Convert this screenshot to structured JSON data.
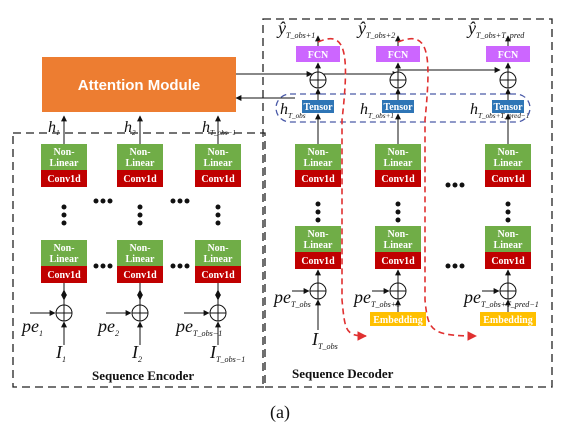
{
  "attention": {
    "label": "Attention Module"
  },
  "blocks": {
    "nonlinear_line1": "Non-",
    "nonlinear_line2": "Linear",
    "conv": "Conv1d",
    "tensor": "Tensor",
    "fcn": "FCN",
    "embedding": "Embedding"
  },
  "encoder": {
    "title": "Sequence Encoder",
    "hidden": [
      {
        "base": "h",
        "sub": "1"
      },
      {
        "base": "h",
        "sub": "2"
      },
      {
        "base": "h",
        "sub": "T_obs−1"
      }
    ],
    "pe": [
      {
        "base": "pe",
        "sub": "1"
      },
      {
        "base": "pe",
        "sub": "2"
      },
      {
        "base": "pe",
        "sub": "T_obs−1"
      }
    ],
    "inputs": [
      {
        "base": "I",
        "sub": "1"
      },
      {
        "base": "I",
        "sub": "2"
      },
      {
        "base": "I",
        "sub": "T_obs−1"
      }
    ]
  },
  "decoder": {
    "title": "Sequence Decoder",
    "outputs": [
      {
        "base": "ŷ",
        "sub": "T_obs+1"
      },
      {
        "base": "ŷ",
        "sub": "T_obs+2"
      },
      {
        "base": "ŷ",
        "sub": "T_obs+T_pred"
      }
    ],
    "hidden": [
      {
        "base": "h",
        "sub": "T_obs"
      },
      {
        "base": "h",
        "sub": "T_obs+1"
      },
      {
        "base": "h",
        "sub": "T_obs+T_pred−1"
      }
    ],
    "pe": [
      {
        "base": "pe",
        "sub": "T_obs"
      },
      {
        "base": "pe",
        "sub": "T_obs+1"
      },
      {
        "base": "pe",
        "sub": "T_obs+T_pred−1"
      }
    ],
    "input": {
      "base": "I",
      "sub": "T_obs"
    }
  },
  "ellipsis": "•••",
  "vellipsis": "⋮",
  "caption": "(a)",
  "colors": {
    "attention": "#ED7D31",
    "nonlinear": "#70AD47",
    "conv": "#C00000",
    "tensor": "#2E75B6",
    "fcn": "#CC66FF",
    "embedding": "#FFC000",
    "feedback": "#E03030",
    "dashed_blue": "#4A5AA8"
  }
}
